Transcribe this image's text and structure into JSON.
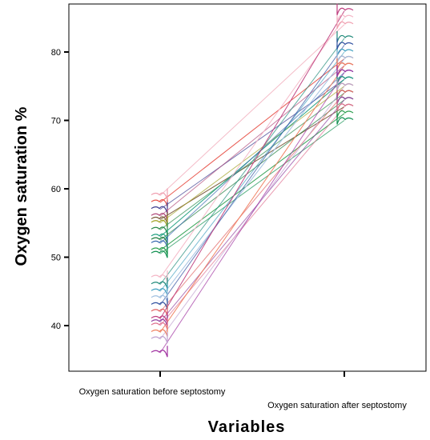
{
  "chart_data": {
    "type": "line",
    "title": "",
    "xlabel": "Variables",
    "ylabel": "Oxygen saturation %",
    "categories": [
      "Oxygen saturation before septostomy",
      "Oxygen saturation after septostomy"
    ],
    "yticks": [
      40,
      50,
      60,
      70,
      80
    ],
    "ylim": [
      35,
      86
    ],
    "grid": false,
    "legend": "none",
    "series": [
      {
        "values": [
          58,
          79
        ],
        "color": "#e8534a"
      },
      {
        "values": [
          57,
          76
        ],
        "color": "#3b3b8f"
      },
      {
        "values": [
          56,
          78
        ],
        "color": "#b04a7a"
      },
      {
        "values": [
          55.5,
          72
        ],
        "color": "#7a5a3a"
      },
      {
        "values": [
          55,
          75
        ],
        "color": "#a0a020"
      },
      {
        "values": [
          54,
          74
        ],
        "color": "#2a8a4a"
      },
      {
        "values": [
          53,
          76
        ],
        "color": "#20a080"
      },
      {
        "values": [
          52.5,
          73
        ],
        "color": "#1a7a3a"
      },
      {
        "values": [
          52,
          77
        ],
        "color": "#3a6ab0"
      },
      {
        "values": [
          51,
          71
        ],
        "color": "#2fa050"
      },
      {
        "values": [
          50.5,
          70
        ],
        "color": "#109050"
      },
      {
        "values": [
          59,
          84
        ],
        "color": "#f0a0b0"
      },
      {
        "values": [
          47,
          85
        ],
        "color": "#f4b6c6"
      },
      {
        "values": [
          46,
          82
        ],
        "color": "#208a7a"
      },
      {
        "values": [
          45,
          80
        ],
        "color": "#40a0c0"
      },
      {
        "values": [
          44,
          79
        ],
        "color": "#a0c0e0"
      },
      {
        "values": [
          43,
          81
        ],
        "color": "#3050a0"
      },
      {
        "values": [
          42,
          74
        ],
        "color": "#e06060"
      },
      {
        "values": [
          41,
          86
        ],
        "color": "#c04080"
      },
      {
        "values": [
          40.5,
          73
        ],
        "color": "#9040a0"
      },
      {
        "values": [
          40,
          72
        ],
        "color": "#e07090"
      },
      {
        "values": [
          39,
          78
        ],
        "color": "#f08060"
      },
      {
        "values": [
          38,
          75
        ],
        "color": "#c0a0d0"
      },
      {
        "values": [
          36,
          77
        ],
        "color": "#a030a0"
      }
    ]
  }
}
